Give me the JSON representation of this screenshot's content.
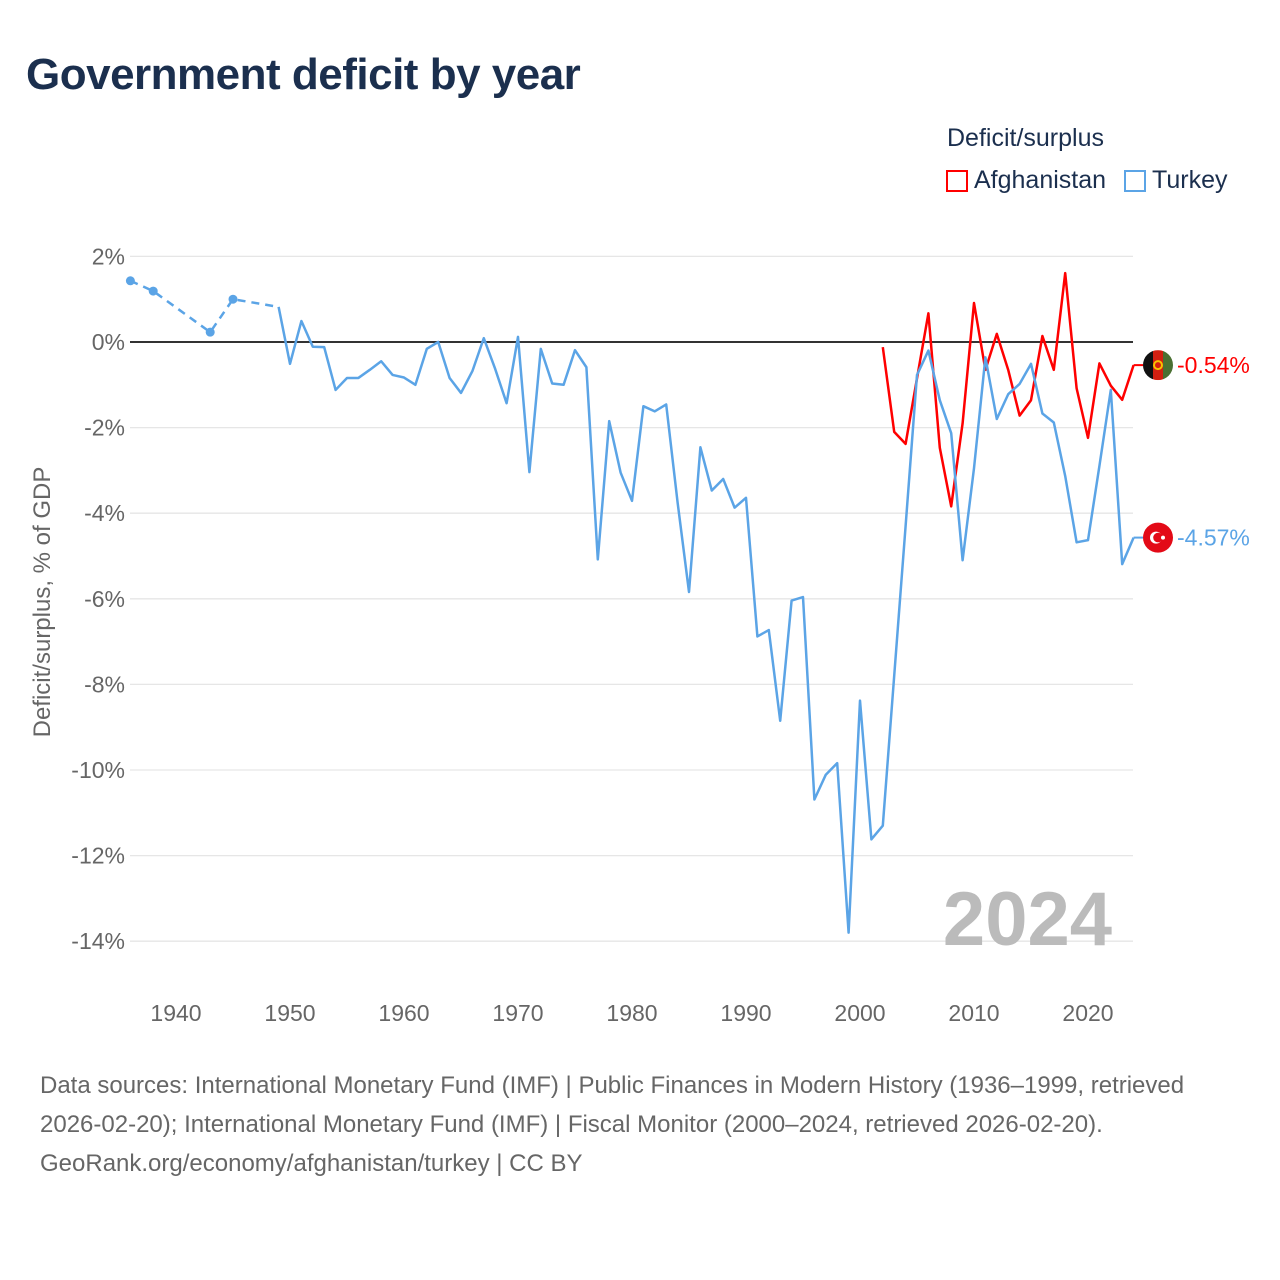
{
  "chart_data": {
    "type": "line",
    "title": "Government deficit by year",
    "ylabel": "Deficit/surplus, % of GDP",
    "xlabel": "",
    "ylim": [
      -14,
      2
    ],
    "xlim": [
      1936,
      2024
    ],
    "yticks": [
      2,
      0,
      -2,
      -4,
      -6,
      -8,
      -10,
      -12,
      -14
    ],
    "ytick_labels": [
      "2%",
      "0%",
      "-2%",
      "-4%",
      "-6%",
      "-8%",
      "-10%",
      "-12%",
      "-14%"
    ],
    "xticks": [
      1940,
      1950,
      1960,
      1970,
      1980,
      1990,
      2000,
      2010,
      2020
    ],
    "xtick_labels": [
      "1940",
      "1950",
      "1960",
      "1970",
      "1980",
      "1990",
      "2000",
      "2010",
      "2020"
    ],
    "grid": true,
    "legend_title": "Deficit/surplus",
    "legend_position": "top-right",
    "year_annotation": "2024",
    "series": [
      {
        "name": "Afghanistan",
        "color": "#ff0000",
        "end_label": "-0.54%",
        "flag": "afghanistan-flag",
        "x": [
          2002,
          2003,
          2004,
          2005,
          2006,
          2007,
          2008,
          2009,
          2010,
          2011,
          2012,
          2013,
          2014,
          2015,
          2016,
          2017,
          2018,
          2019,
          2020,
          2021,
          2022,
          2023,
          2024
        ],
        "y": [
          -0.12,
          -2.1,
          -2.38,
          -0.85,
          0.67,
          -2.47,
          -3.84,
          -1.9,
          0.91,
          -0.65,
          0.19,
          -0.65,
          -1.72,
          -1.36,
          0.14,
          -0.65,
          1.61,
          -1.08,
          -2.24,
          -0.5,
          -1.02,
          -1.35,
          -0.54
        ]
      },
      {
        "name": "Turkey",
        "color": "#5ba4e6",
        "end_label": "-4.57%",
        "flag": "turkey-flag",
        "sparse_x": [
          1936,
          1938,
          1943,
          1945,
          1949
        ],
        "sparse_y": [
          1.43,
          1.19,
          0.23,
          1.0,
          0.82
        ],
        "x": [
          1949,
          1950,
          1951,
          1952,
          1953,
          1954,
          1955,
          1956,
          1957,
          1958,
          1959,
          1960,
          1961,
          1962,
          1963,
          1964,
          1965,
          1966,
          1967,
          1968,
          1969,
          1970,
          1971,
          1972,
          1973,
          1974,
          1975,
          1976,
          1977,
          1978,
          1979,
          1980,
          1981,
          1982,
          1983,
          1984,
          1985,
          1986,
          1987,
          1988,
          1989,
          1990,
          1991,
          1992,
          1993,
          1994,
          1995,
          1996,
          1997,
          1998,
          1999,
          2000,
          2001,
          2002,
          2003,
          2004,
          2005,
          2006,
          2007,
          2008,
          2009,
          2010,
          2011,
          2012,
          2013,
          2014,
          2015,
          2016,
          2017,
          2018,
          2019,
          2020,
          2021,
          2022,
          2023,
          2024
        ],
        "y": [
          0.82,
          -0.51,
          0.49,
          -0.11,
          -0.12,
          -1.12,
          -0.84,
          -0.84,
          -0.65,
          -0.45,
          -0.77,
          -0.83,
          -1.0,
          -0.16,
          0.0,
          -0.84,
          -1.19,
          -0.68,
          0.09,
          -0.63,
          -1.43,
          0.12,
          -3.04,
          -0.16,
          -0.97,
          -1.0,
          -0.19,
          -0.59,
          -5.08,
          -1.85,
          -3.05,
          -3.71,
          -1.5,
          -1.62,
          -1.46,
          -3.75,
          -5.84,
          -2.46,
          -3.47,
          -3.2,
          -3.87,
          -3.64,
          -6.88,
          -6.73,
          -8.85,
          -6.04,
          -5.96,
          -10.69,
          -10.11,
          -9.84,
          -13.8,
          -8.38,
          -11.62,
          -11.3,
          -7.8,
          -4.3,
          -0.77,
          -0.2,
          -1.36,
          -2.13,
          -5.1,
          -2.95,
          -0.36,
          -1.8,
          -1.22,
          -0.98,
          -0.51,
          -1.67,
          -1.88,
          -3.13,
          -4.68,
          -4.63,
          -2.9,
          -1.12,
          -5.19,
          -4.57
        ]
      }
    ]
  },
  "footer": {
    "sources": "Data sources: International Monetary Fund (IMF) | Public Finances in Modern History (1936–1999, retrieved 2026-02-20); International Monetary Fund (IMF) | Fiscal Monitor (2000–2024, retrieved 2026-02-20).",
    "credit": "GeoRank.org/economy/afghanistan/turkey | CC BY"
  }
}
